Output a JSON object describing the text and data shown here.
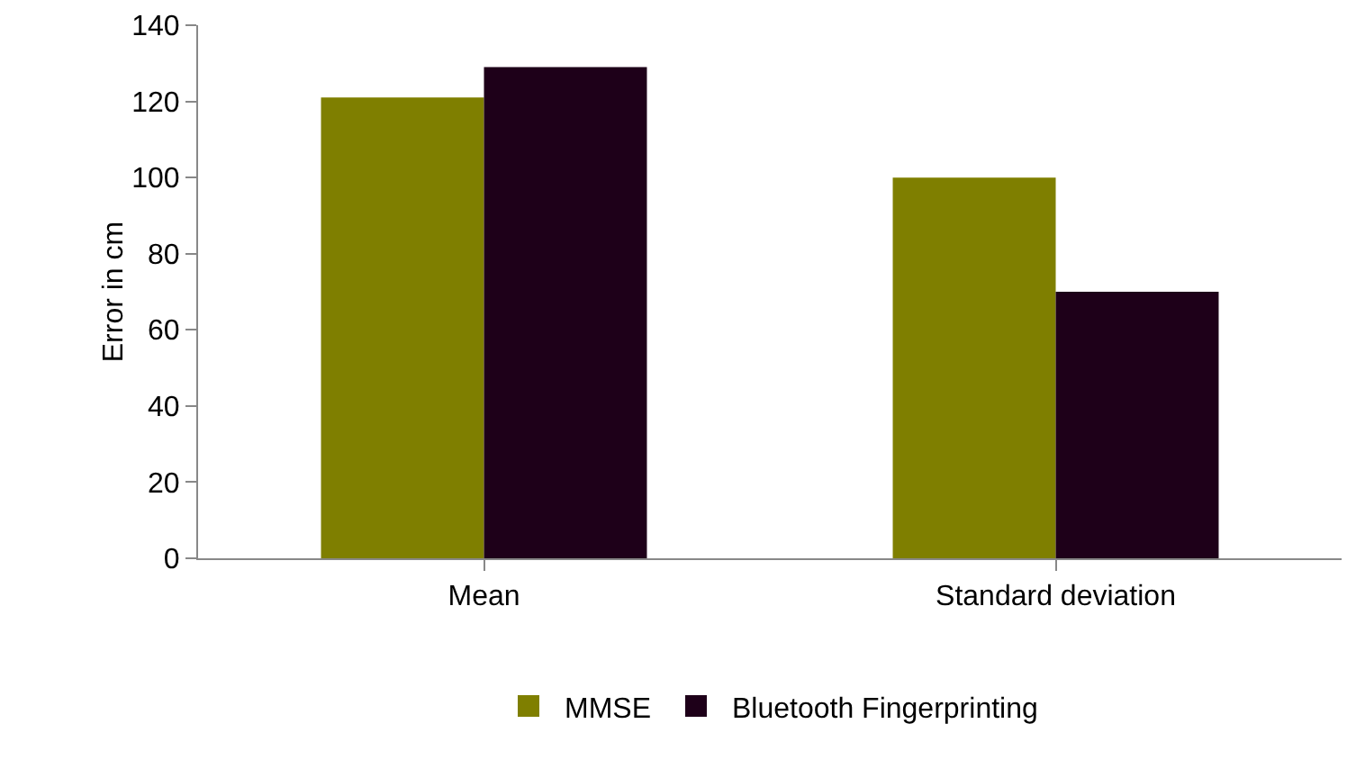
{
  "chart_data": {
    "type": "bar",
    "ylabel": "Error in cm",
    "categories": [
      "Mean",
      "Standard deviation"
    ],
    "series": [
      {
        "name": "MMSE",
        "color": "#7f7f00",
        "values": [
          121,
          100
        ]
      },
      {
        "name": "Bluetooth Fingerprinting",
        "color": "#1e0019",
        "values": [
          129,
          70
        ]
      }
    ],
    "ylim": [
      0,
      140
    ],
    "yticks": [
      0,
      20,
      40,
      60,
      80,
      100,
      120,
      140
    ],
    "grid": false,
    "legend": "bottom"
  }
}
